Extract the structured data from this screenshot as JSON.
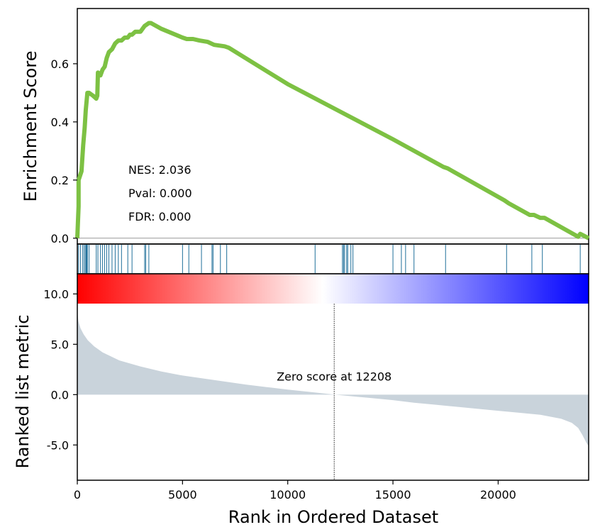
{
  "chart_data": {
    "type": "line",
    "x_range": [
      0,
      24300
    ],
    "es_panel": {
      "ylabel": "Enrichment Score",
      "ylim": [
        -0.02,
        0.79
      ],
      "yticks": [
        "0.0",
        "0.2",
        "0.4",
        "0.6"
      ],
      "ytick_values": [
        0,
        0.2,
        0.4,
        0.6
      ],
      "line_color": "#7dc143",
      "baseline_color": "#999999",
      "curve": [
        [
          0,
          0.0
        ],
        [
          60,
          0.11
        ],
        [
          60,
          0.2
        ],
        [
          200,
          0.23
        ],
        [
          280,
          0.32
        ],
        [
          350,
          0.38
        ],
        [
          400,
          0.44
        ],
        [
          480,
          0.5
        ],
        [
          560,
          0.5
        ],
        [
          750,
          0.49
        ],
        [
          900,
          0.48
        ],
        [
          950,
          0.49
        ],
        [
          980,
          0.57
        ],
        [
          1100,
          0.56
        ],
        [
          1200,
          0.58
        ],
        [
          1300,
          0.59
        ],
        [
          1400,
          0.62
        ],
        [
          1500,
          0.64
        ],
        [
          1650,
          0.65
        ],
        [
          1800,
          0.67
        ],
        [
          1950,
          0.68
        ],
        [
          2100,
          0.68
        ],
        [
          2250,
          0.69
        ],
        [
          2400,
          0.69
        ],
        [
          2500,
          0.7
        ],
        [
          2600,
          0.7
        ],
        [
          2750,
          0.71
        ],
        [
          2900,
          0.71
        ],
        [
          3000,
          0.71
        ],
        [
          3200,
          0.73
        ],
        [
          3400,
          0.74
        ],
        [
          3500,
          0.74
        ],
        [
          4000,
          0.72
        ],
        [
          5000,
          0.69
        ],
        [
          5200,
          0.685
        ],
        [
          5500,
          0.685
        ],
        [
          5800,
          0.68
        ],
        [
          6200,
          0.675
        ],
        [
          6500,
          0.665
        ],
        [
          7000,
          0.66
        ],
        [
          7200,
          0.655
        ],
        [
          10000,
          0.53
        ],
        [
          12500,
          0.435
        ],
        [
          15000,
          0.34
        ],
        [
          17400,
          0.245
        ],
        [
          17600,
          0.24
        ],
        [
          20300,
          0.13
        ],
        [
          20500,
          0.12
        ],
        [
          21500,
          0.08
        ],
        [
          21700,
          0.08
        ],
        [
          22000,
          0.07
        ],
        [
          22200,
          0.07
        ],
        [
          23800,
          0.005
        ],
        [
          23900,
          0.015
        ],
        [
          24300,
          0.0
        ]
      ],
      "annotations": [
        "NES: 2.036",
        "Pval: 0.000",
        "FDR: 0.000"
      ]
    },
    "hits_panel": {
      "hit_color": "#1f6f9a",
      "hits": [
        60,
        150,
        250,
        320,
        380,
        420,
        450,
        480,
        560,
        900,
        980,
        1100,
        1200,
        1300,
        1400,
        1500,
        1650,
        1800,
        1950,
        2100,
        2400,
        2600,
        3200,
        3250,
        3400,
        5000,
        5300,
        5900,
        6400,
        6450,
        6800,
        7100,
        11300,
        12600,
        12650,
        12700,
        12800,
        12850,
        13000,
        13100,
        15000,
        15400,
        15600,
        16000,
        17500,
        20400,
        21600,
        22100,
        23900
      ]
    },
    "heatmap": {
      "colors": [
        "#ff0000",
        "#ffffff",
        "#0000ff"
      ]
    },
    "rank_panel": {
      "ylabel": "Ranked list metric",
      "ylim": [
        -8.5,
        12.0
      ],
      "yticks": [
        "10.0",
        "5.0",
        "0.0",
        "-5.0"
      ],
      "ytick_values": [
        10,
        5,
        0,
        -5
      ],
      "fill_color": "#c9d3db",
      "zero_cross_x": 12208,
      "zero_label": "Zero score at 12208",
      "metric_curve": [
        [
          0,
          8.2
        ],
        [
          50,
          7.3
        ],
        [
          150,
          6.6
        ],
        [
          300,
          6.0
        ],
        [
          500,
          5.4
        ],
        [
          800,
          4.8
        ],
        [
          1200,
          4.2
        ],
        [
          2000,
          3.4
        ],
        [
          3000,
          2.8
        ],
        [
          4000,
          2.3
        ],
        [
          5000,
          1.9
        ],
        [
          6000,
          1.6
        ],
        [
          7000,
          1.3
        ],
        [
          8000,
          1.0
        ],
        [
          9000,
          0.75
        ],
        [
          10000,
          0.5
        ],
        [
          11000,
          0.28
        ],
        [
          12208,
          0.0
        ],
        [
          13000,
          -0.15
        ],
        [
          14000,
          -0.35
        ],
        [
          15000,
          -0.55
        ],
        [
          16000,
          -0.8
        ],
        [
          17000,
          -1.0
        ],
        [
          18000,
          -1.2
        ],
        [
          19000,
          -1.4
        ],
        [
          20000,
          -1.6
        ],
        [
          21000,
          -1.8
        ],
        [
          22000,
          -2.0
        ],
        [
          23000,
          -2.4
        ],
        [
          23500,
          -2.8
        ],
        [
          23800,
          -3.3
        ],
        [
          24000,
          -4.0
        ],
        [
          24200,
          -4.8
        ],
        [
          24300,
          -5.1
        ]
      ]
    },
    "xaxis": {
      "label": "Rank in Ordered Dataset",
      "ticks": [
        "0",
        "5000",
        "10000",
        "15000",
        "20000"
      ],
      "tick_values": [
        0,
        5000,
        10000,
        15000,
        20000
      ]
    }
  }
}
